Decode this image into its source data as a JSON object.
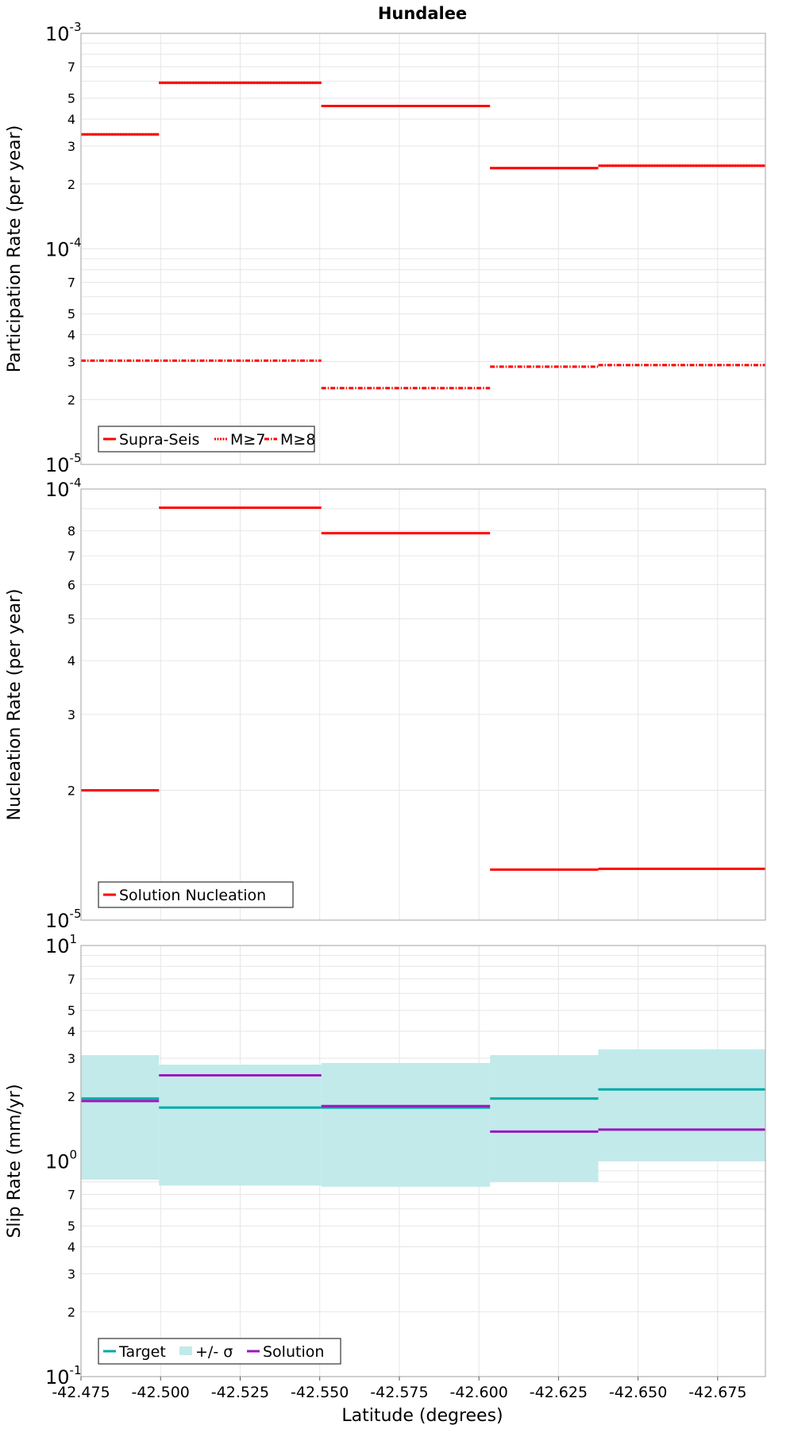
{
  "chart_data": {
    "title": "Hundalee",
    "xlabel": "Latitude (degrees)",
    "xlim": [
      -42.475,
      -42.69
    ],
    "x_ticks": [
      -42.475,
      -42.5,
      -42.525,
      -42.55,
      -42.575,
      -42.6,
      -42.625,
      -42.65,
      -42.675
    ],
    "x_tick_labels": [
      "-42.475",
      "-42.500",
      "-42.525",
      "-42.550",
      "-42.575",
      "-42.600",
      "-42.625",
      "-42.650",
      "-42.675"
    ],
    "grid": true,
    "panels": [
      {
        "type": "line",
        "ylabel": "Participation Rate (per year)",
        "yscale": "log",
        "ylim": [
          1e-05,
          0.001
        ],
        "decade_labels": [
          {
            "value": 0.001,
            "base": "10",
            "exp": "-3"
          },
          {
            "value": 0.0001,
            "base": "10",
            "exp": "-4"
          },
          {
            "value": 1e-05,
            "base": "10",
            "exp": "-5"
          }
        ],
        "minor_labels": [
          "2",
          "3",
          "4",
          "5",
          "7"
        ],
        "legend": {
          "position": "bottom-left",
          "items": [
            {
              "label": "Supra-Seis",
              "style": "solid",
              "color": "#ff0000"
            },
            {
              "label": "M≥7",
              "style": "dotted",
              "color": "#ff0000"
            },
            {
              "label": "M≥8",
              "style": "dashdot",
              "color": "#ff0000"
            }
          ]
        },
        "series": [
          {
            "name": "Supra-Seis",
            "style": "solid",
            "color": "#ff0000",
            "segments": [
              {
                "x": [
                  -42.475,
                  -42.4995
                ],
                "y": 0.00034
              },
              {
                "x": [
                  -42.4995,
                  -42.5505
                ],
                "y": 0.00059
              },
              {
                "x": [
                  -42.5505,
                  -42.6035
                ],
                "y": 0.00046
              },
              {
                "x": [
                  -42.6035,
                  -42.6375
                ],
                "y": 0.000237
              },
              {
                "x": [
                  -42.6375,
                  -42.69
                ],
                "y": 0.000243
              }
            ]
          },
          {
            "name": "M≥7",
            "style": "dotted",
            "color": "#ff0000",
            "segments": [
              {
                "x": [
                  -42.475,
                  -42.4995
                ],
                "y": 0.00034
              },
              {
                "x": [
                  -42.4995,
                  -42.5505
                ],
                "y": 0.00059
              },
              {
                "x": [
                  -42.5505,
                  -42.6035
                ],
                "y": 0.00046
              },
              {
                "x": [
                  -42.6035,
                  -42.6375
                ],
                "y": 0.000237
              },
              {
                "x": [
                  -42.6375,
                  -42.69
                ],
                "y": 0.000243
              }
            ]
          },
          {
            "name": "M≥8",
            "style": "dashdot",
            "color": "#ff0000",
            "segments": [
              {
                "x": [
                  -42.475,
                  -42.5505
                ],
                "y": 3.03e-05
              },
              {
                "x": [
                  -42.5505,
                  -42.6035
                ],
                "y": 2.26e-05
              },
              {
                "x": [
                  -42.6035,
                  -42.6375
                ],
                "y": 2.84e-05
              },
              {
                "x": [
                  -42.6375,
                  -42.69
                ],
                "y": 2.89e-05
              }
            ]
          }
        ]
      },
      {
        "type": "line",
        "ylabel": "Nucleation Rate (per year)",
        "yscale": "log",
        "ylim": [
          1e-05,
          0.0001
        ],
        "decade_labels": [
          {
            "value": 0.0001,
            "base": "10",
            "exp": "-4"
          },
          {
            "value": 1e-05,
            "base": "10",
            "exp": "-5"
          }
        ],
        "minor_labels": [
          "2",
          "3",
          "4",
          "5",
          "6",
          "7",
          "8"
        ],
        "legend": {
          "position": "bottom-left",
          "items": [
            {
              "label": "Solution Nucleation",
              "style": "solid",
              "color": "#ff0000"
            }
          ]
        },
        "series": [
          {
            "name": "Solution Nucleation",
            "style": "solid",
            "color": "#ff0000",
            "segments": [
              {
                "x": [
                  -42.475,
                  -42.4995
                ],
                "y": 2e-05
              },
              {
                "x": [
                  -42.4995,
                  -42.5505
                ],
                "y": 9.05e-05
              },
              {
                "x": [
                  -42.5505,
                  -42.6035
                ],
                "y": 7.9e-05
              },
              {
                "x": [
                  -42.6035,
                  -42.6375
                ],
                "y": 1.31e-05
              },
              {
                "x": [
                  -42.6375,
                  -42.69
                ],
                "y": 1.315e-05
              }
            ]
          }
        ]
      },
      {
        "type": "line",
        "ylabel": "Slip Rate (mm/yr)",
        "yscale": "log",
        "ylim": [
          0.1,
          10
        ],
        "decade_labels": [
          {
            "value": 10,
            "base": "10",
            "exp": "1"
          },
          {
            "value": 1,
            "base": "10",
            "exp": "0"
          },
          {
            "value": 0.1,
            "base": "10",
            "exp": "-1"
          }
        ],
        "minor_labels": [
          "2",
          "3",
          "4",
          "5",
          "7"
        ],
        "legend": {
          "position": "bottom-left",
          "items": [
            {
              "label": "Target",
              "style": "solid",
              "color": "#00a8a8"
            },
            {
              "label": "+/- σ",
              "style": "band",
              "color": "#c2eaea"
            },
            {
              "label": "Solution",
              "style": "solid",
              "color": "#9b16bf"
            }
          ]
        },
        "bands": [
          {
            "name": "+/- σ",
            "color": "#c2eaea",
            "segments": [
              {
                "x": [
                  -42.475,
                  -42.4995
                ],
                "low": 0.82,
                "high": 3.1
              },
              {
                "x": [
                  -42.4995,
                  -42.5505
                ],
                "low": 0.77,
                "high": 2.8
              },
              {
                "x": [
                  -42.5505,
                  -42.6035
                ],
                "low": 0.76,
                "high": 2.85
              },
              {
                "x": [
                  -42.6035,
                  -42.6375
                ],
                "low": 0.8,
                "high": 3.1
              },
              {
                "x": [
                  -42.6375,
                  -42.69
                ],
                "low": 1.0,
                "high": 3.3
              }
            ]
          }
        ],
        "series": [
          {
            "name": "Target",
            "style": "solid",
            "color": "#00a8a8",
            "segments": [
              {
                "x": [
                  -42.475,
                  -42.4995
                ],
                "y": 1.95
              },
              {
                "x": [
                  -42.4995,
                  -42.5505
                ],
                "y": 1.77
              },
              {
                "x": [
                  -42.5505,
                  -42.6035
                ],
                "y": 1.77
              },
              {
                "x": [
                  -42.6035,
                  -42.6375
                ],
                "y": 1.95
              },
              {
                "x": [
                  -42.6375,
                  -42.69
                ],
                "y": 2.15
              }
            ]
          },
          {
            "name": "Solution",
            "style": "solid",
            "color": "#9b16bf",
            "segments": [
              {
                "x": [
                  -42.475,
                  -42.4995
                ],
                "y": 1.9
              },
              {
                "x": [
                  -42.4995,
                  -42.5505
                ],
                "y": 2.5
              },
              {
                "x": [
                  -42.5505,
                  -42.6035
                ],
                "y": 1.8
              },
              {
                "x": [
                  -42.6035,
                  -42.6375
                ],
                "y": 1.37
              },
              {
                "x": [
                  -42.6375,
                  -42.69
                ],
                "y": 1.4
              }
            ]
          }
        ]
      }
    ]
  }
}
